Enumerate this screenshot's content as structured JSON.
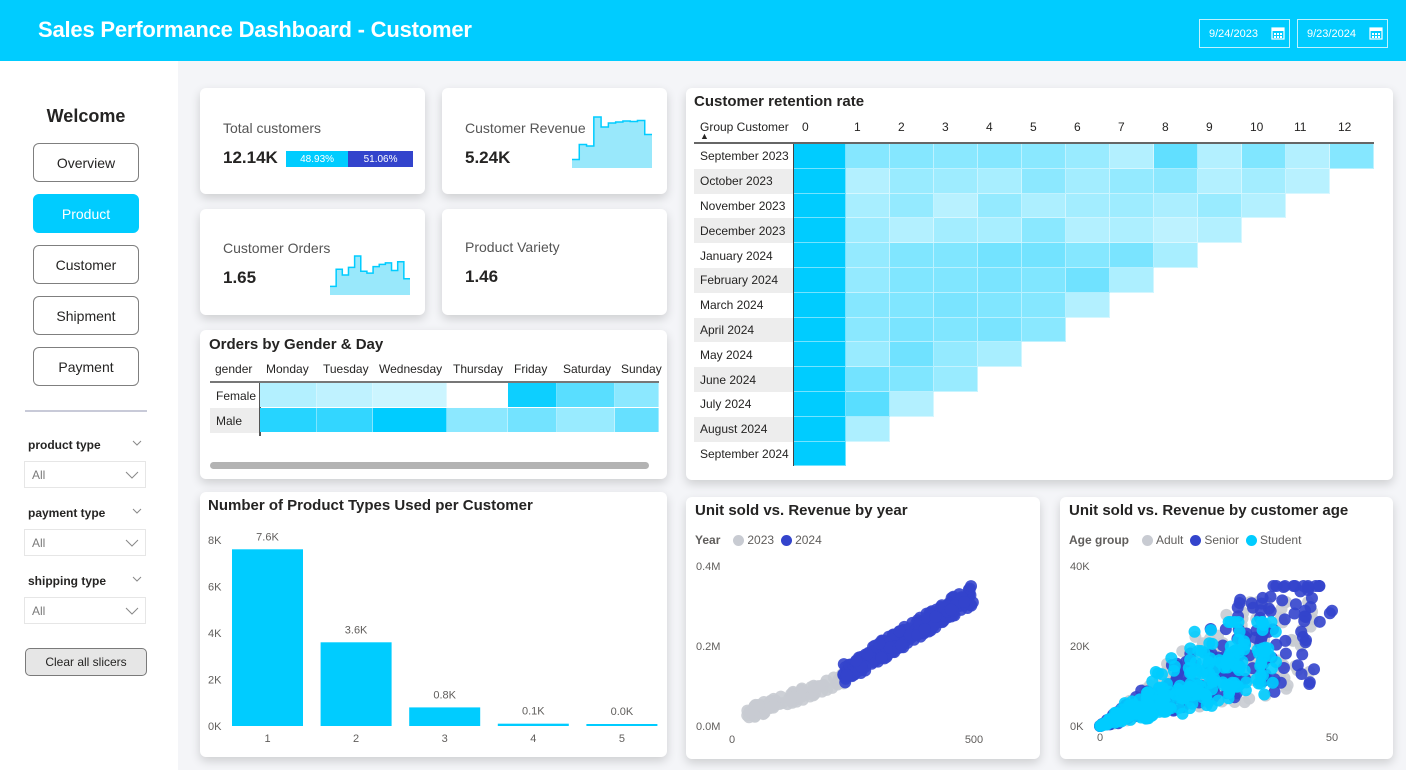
{
  "header": {
    "title": "Sales Performance Dashboard - Customer",
    "start_date": "9/24/2023",
    "end_date": "9/23/2024",
    "calendar_icon": "calendar-icon"
  },
  "sidebar": {
    "welcome": "Welcome",
    "nav": [
      {
        "label": "Overview",
        "active": false
      },
      {
        "label": "Product",
        "active": true
      },
      {
        "label": "Customer",
        "active": false
      },
      {
        "label": "Shipment",
        "active": false
      },
      {
        "label": "Payment",
        "active": false
      }
    ],
    "slicers": [
      {
        "label": "product type",
        "value": "All"
      },
      {
        "label": "payment type",
        "value": "All"
      },
      {
        "label": "shipping type",
        "value": "All"
      }
    ],
    "clear_label": "Clear all slicers"
  },
  "colors": {
    "brand": "#00ccff",
    "dark_blue": "#3344cc",
    "grey": "#c8cbd2"
  },
  "kpis": {
    "total_customers": {
      "label": "Total customers",
      "value": "12.14K",
      "split": [
        {
          "label": "48.93%",
          "pct": 48.93
        },
        {
          "label": "51.06%",
          "pct": 51.06
        }
      ]
    },
    "customer_revenue": {
      "label": "Customer Revenue",
      "value": "5.24K",
      "sparkline": [
        0.15,
        0.45,
        0.42,
        1.0,
        0.8,
        0.88,
        0.9,
        0.92,
        0.91,
        0.93,
        0.65
      ]
    },
    "customer_orders": {
      "label": "Customer Orders",
      "value": "1.65",
      "sparkline": [
        0.2,
        0.65,
        0.5,
        0.7,
        1.0,
        0.6,
        0.55,
        0.72,
        0.78,
        0.82,
        0.62,
        0.85,
        0.4
      ]
    },
    "product_variety": {
      "label": "Product Variety",
      "value": "1.46"
    }
  },
  "gender_day": {
    "title": "Orders by Gender & Day",
    "row_header": "gender",
    "columns": [
      "Monday",
      "Tuesday",
      "Wednesday",
      "Thursday",
      "Friday",
      "Saturday",
      "Sunday"
    ],
    "rows": [
      {
        "label": "Female",
        "intensity": [
          0.3,
          0.25,
          0.2,
          0.0,
          0.95,
          0.65,
          0.45
        ]
      },
      {
        "label": "Male",
        "intensity": [
          0.85,
          0.8,
          1.0,
          0.45,
          0.55,
          0.4,
          0.6
        ]
      }
    ]
  },
  "retention": {
    "title": "Customer retention rate",
    "row_header": "Group Customer",
    "columns": [
      "0",
      "1",
      "2",
      "3",
      "4",
      "5",
      "6",
      "7",
      "8",
      "9",
      "10",
      "11",
      "12"
    ],
    "rows": [
      {
        "label": "September 2023",
        "intensity": [
          1.0,
          0.48,
          0.48,
          0.46,
          0.48,
          0.46,
          0.4,
          0.3,
          0.62,
          0.3,
          0.5,
          0.3,
          0.48
        ]
      },
      {
        "label": "October 2023",
        "intensity": [
          1.0,
          0.3,
          0.4,
          0.38,
          0.34,
          0.45,
          0.36,
          0.42,
          0.45,
          0.3,
          0.36,
          0.28
        ]
      },
      {
        "label": "November 2023",
        "intensity": [
          1.0,
          0.34,
          0.42,
          0.28,
          0.42,
          0.32,
          0.36,
          0.38,
          0.33,
          0.4,
          0.3
        ]
      },
      {
        "label": "December 2023",
        "intensity": [
          1.0,
          0.38,
          0.3,
          0.36,
          0.34,
          0.46,
          0.3,
          0.32,
          0.26,
          0.3
        ]
      },
      {
        "label": "January 2024",
        "intensity": [
          1.0,
          0.42,
          0.5,
          0.5,
          0.55,
          0.55,
          0.48,
          0.52,
          0.34
        ]
      },
      {
        "label": "February 2024",
        "intensity": [
          1.0,
          0.42,
          0.5,
          0.5,
          0.52,
          0.5,
          0.56,
          0.32
        ]
      },
      {
        "label": "March 2024",
        "intensity": [
          1.0,
          0.48,
          0.5,
          0.52,
          0.5,
          0.48,
          0.3
        ]
      },
      {
        "label": "April 2024",
        "intensity": [
          1.0,
          0.46,
          0.52,
          0.5,
          0.52,
          0.46
        ]
      },
      {
        "label": "May 2024",
        "intensity": [
          1.0,
          0.4,
          0.56,
          0.42,
          0.34
        ]
      },
      {
        "label": "June 2024",
        "intensity": [
          1.0,
          0.55,
          0.5,
          0.4
        ]
      },
      {
        "label": "July 2024",
        "intensity": [
          1.0,
          0.65,
          0.3
        ]
      },
      {
        "label": "August 2024",
        "intensity": [
          1.0,
          0.32
        ]
      },
      {
        "label": "September 2024",
        "intensity": [
          1.0
        ]
      }
    ]
  },
  "chart_data": [
    {
      "type": "bar",
      "title": "Number of Product Types Used per Customer",
      "categories": [
        "1",
        "2",
        "3",
        "4",
        "5"
      ],
      "values": [
        7600,
        3600,
        800,
        100,
        20
      ],
      "data_labels": [
        "7.6K",
        "3.6K",
        "0.8K",
        "0.1K",
        "0.0K"
      ],
      "yticks": [
        "0K",
        "2K",
        "4K",
        "6K",
        "8K"
      ],
      "ylim": [
        0,
        8000
      ],
      "xlabel": "",
      "ylabel": "",
      "grid": false
    },
    {
      "type": "scatter",
      "title": "Unit sold vs. Revenue by year",
      "legend_title": "Year",
      "legend_position": "top-left",
      "series": [
        {
          "name": "2023",
          "color": "#c8cbd2",
          "x_range": [
            30,
            240
          ],
          "y_range": [
            0.03,
            0.12
          ]
        },
        {
          "name": "2024",
          "color": "#3344cc",
          "x_range": [
            230,
            500
          ],
          "y_range": [
            0.13,
            0.33
          ]
        }
      ],
      "xticks": [
        "0",
        "500"
      ],
      "yticks": [
        "0.0M",
        "0.2M",
        "0.4M"
      ],
      "xlim": [
        0,
        600
      ],
      "ylim": [
        0,
        0.4
      ]
    },
    {
      "type": "scatter",
      "title": "Unit sold vs. Revenue by customer age",
      "legend_title": "Age group",
      "legend_position": "top-left",
      "series": [
        {
          "name": "Adult",
          "color": "#c8cbd2",
          "x_max": 46,
          "y_max": 31000
        },
        {
          "name": "Senior",
          "color": "#3344cc",
          "x_max": 50,
          "y_max": 35000
        },
        {
          "name": "Student",
          "color": "#00ccff",
          "x_max": 38,
          "y_max": 26000
        }
      ],
      "xticks": [
        "0",
        "50"
      ],
      "yticks": [
        "0K",
        "20K",
        "40K"
      ],
      "xlim": [
        0,
        60
      ],
      "ylim": [
        0,
        40000
      ]
    }
  ]
}
